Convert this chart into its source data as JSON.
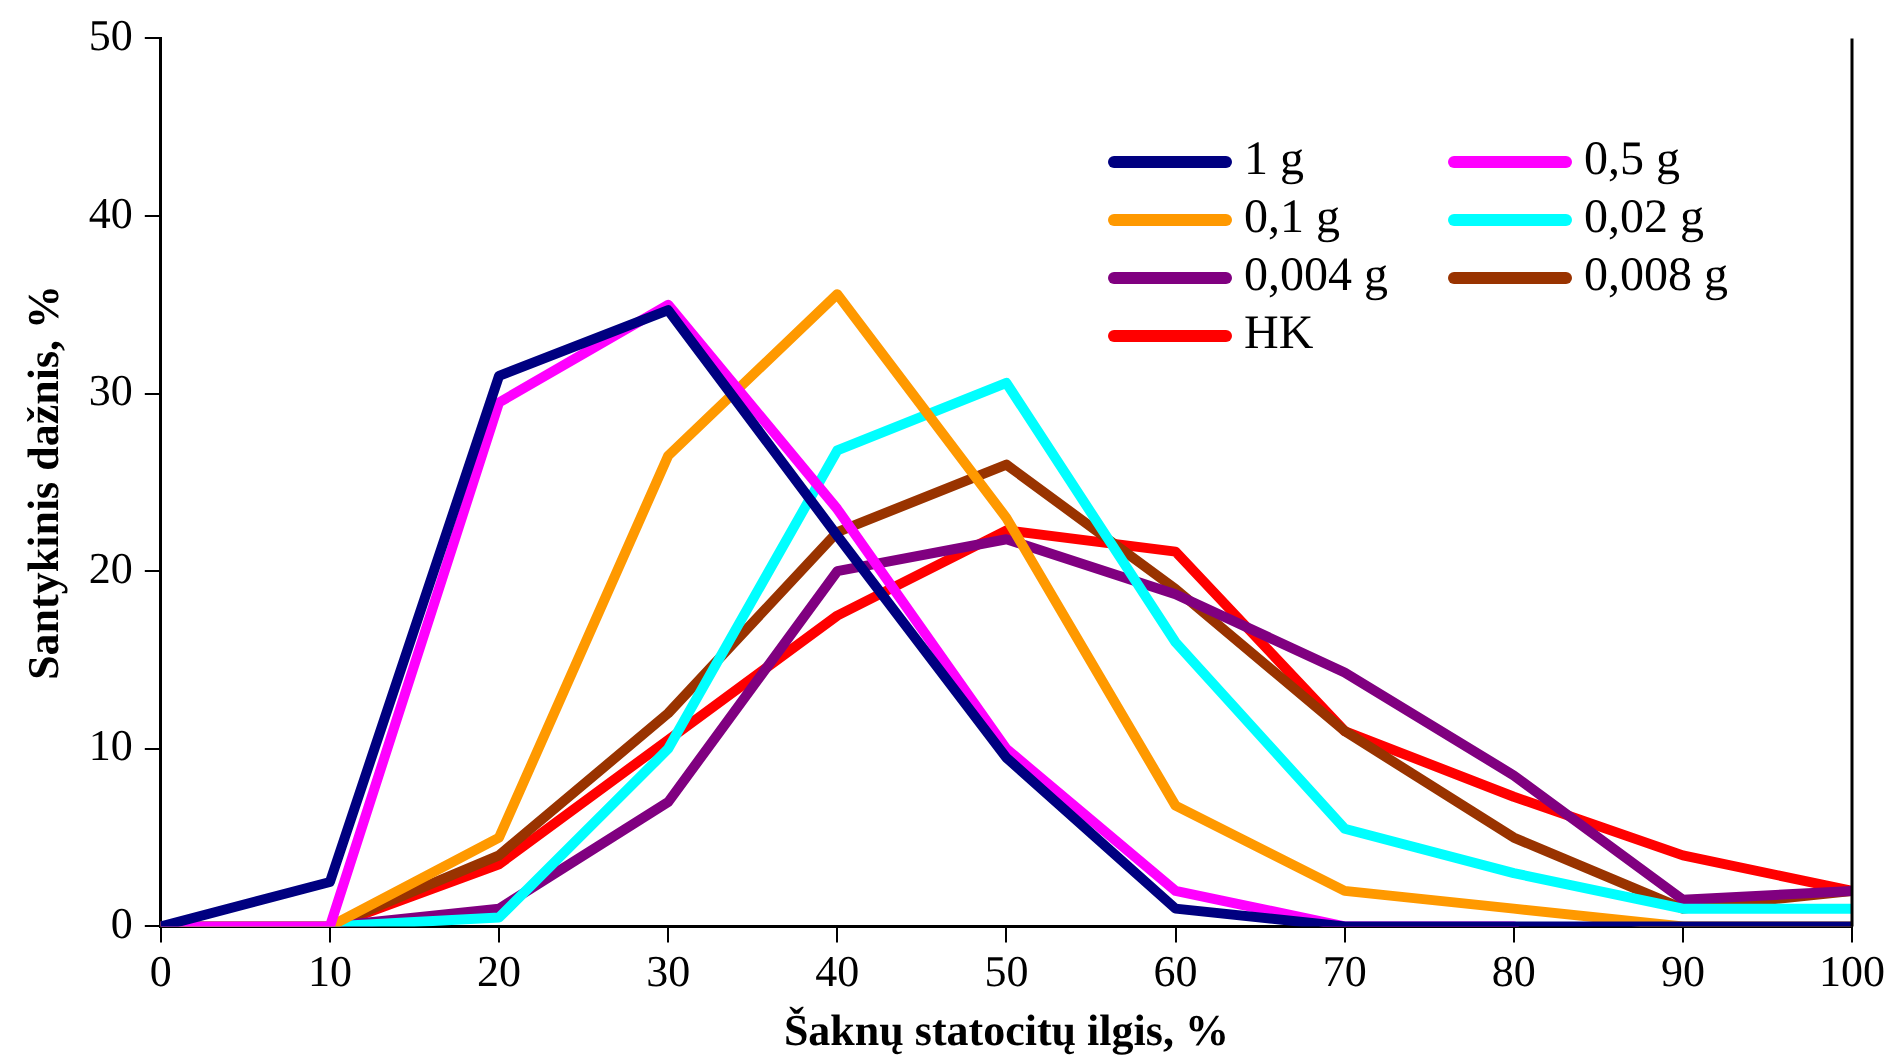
{
  "chart_data": {
    "type": "line",
    "xlabel": "Šaknų statocitų ilgis, %",
    "ylabel": "Santykinis dažnis, %",
    "x": [
      0,
      10,
      20,
      30,
      40,
      50,
      60,
      70,
      80,
      90,
      100
    ],
    "xlim": [
      0,
      100
    ],
    "xticks": [
      0,
      10,
      20,
      30,
      40,
      50,
      60,
      70,
      80,
      90,
      100
    ],
    "ylim": [
      0,
      50
    ],
    "yticks": [
      0,
      10,
      20,
      30,
      40,
      50
    ],
    "grid": false,
    "legend": "top right",
    "marker": "none",
    "line_style": "solid",
    "series": [
      {
        "name": "1 g",
        "color": "#000080",
        "values": [
          0,
          2.5,
          31,
          34.7,
          22,
          9.5,
          1,
          0,
          0,
          0,
          0
        ]
      },
      {
        "name": "0,5 g",
        "color": "#ff00ff",
        "values": [
          0,
          0,
          29.5,
          35,
          23.5,
          10,
          2,
          0,
          0,
          null,
          null
        ]
      },
      {
        "name": "0,1 g",
        "color": "#ff9900",
        "values": [
          0,
          0,
          5,
          26.5,
          35.6,
          23,
          6.8,
          2,
          1,
          0,
          0
        ]
      },
      {
        "name": "0,02 g",
        "color": "#00ffff",
        "values": [
          0,
          0,
          0.5,
          10,
          26.8,
          30.6,
          16,
          5.5,
          3,
          1,
          1
        ]
      },
      {
        "name": "0,004 g",
        "color": "#800080",
        "values": [
          0,
          0,
          1,
          7,
          20,
          21.8,
          18.7,
          14.3,
          8.5,
          1.5,
          2
        ]
      },
      {
        "name": "0,008 g",
        "color": "#993300",
        "values": [
          0,
          0,
          4,
          12,
          22.2,
          26,
          19,
          11,
          5,
          1,
          2
        ]
      },
      {
        "name": "HK",
        "color": "#ff0000",
        "values": [
          0,
          0,
          3.5,
          10.5,
          17.5,
          22.3,
          21.1,
          11,
          7.3,
          4,
          2
        ]
      }
    ]
  }
}
